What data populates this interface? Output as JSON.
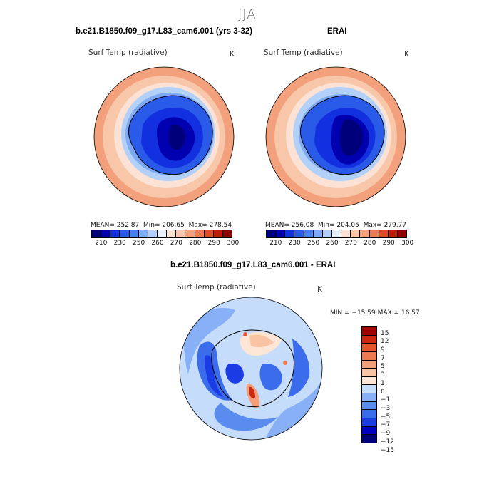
{
  "page": {
    "title": "JJA"
  },
  "palette": {
    "abs": [
      "#00007a",
      "#0000b0",
      "#1330e0",
      "#2a5ae8",
      "#4a7ef0",
      "#7eaaf4",
      "#b2d0f8",
      "#e6f0ff",
      "#fbe2d4",
      "#f8c6a8",
      "#f3a07c",
      "#ee7a55",
      "#e04a2a",
      "#c01a0a",
      "#8a0000"
    ],
    "diff": [
      "#00007a",
      "#0000c0",
      "#1b3ce4",
      "#3a6cec",
      "#5a8cf0",
      "#88b0f6",
      "#c6dcfb",
      "#fde6d6",
      "#f8c4a4",
      "#f3a07a",
      "#ee7a52",
      "#e8542c",
      "#cf2810",
      "#a00000"
    ]
  },
  "panels": {
    "left": {
      "title": "b.e21.B1850.f09_g17.L83_cam6.001 (yrs 3-32)",
      "variable": "Surf Temp (radiative)",
      "units": "K",
      "stats": {
        "mean": "MEAN= 252.87",
        "min": "Min= 206.65",
        "max": "Max= 278.54"
      }
    },
    "right": {
      "title": "ERAI",
      "variable": "Surf Temp (radiative)",
      "units": "K",
      "stats": {
        "mean": "MEAN= 256.08",
        "min": "Min= 204.05",
        "max": "Max= 279.77"
      }
    },
    "bottom": {
      "title": "b.e21.B1850.f09_g17.L83_cam6.001 - ERAI",
      "variable": "Surf Temp (radiative)",
      "units": "K",
      "minmax": "MIN = −15.59 MAX =  16.57"
    }
  },
  "colorbars": {
    "abs_ticks": [
      "210",
      "230",
      "250",
      "260",
      "270",
      "280",
      "290",
      "300"
    ],
    "diff_ticks": [
      "15",
      "12",
      "9",
      "7",
      "5",
      "3",
      "1",
      "0",
      "−1",
      "−3",
      "−5",
      "−7",
      "−9",
      "−12",
      "−15"
    ]
  }
}
